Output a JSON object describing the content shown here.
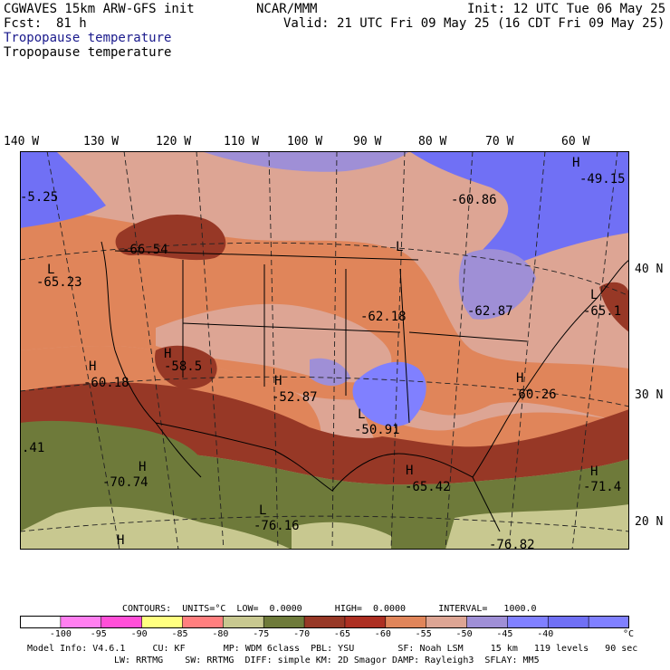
{
  "header": {
    "model": "CGWAVES 15km ARW-GFS init",
    "org": "NCAR/MMM",
    "init": "Init: 12 UTC Tue 06 May 25",
    "fcst_label": "Fcst:",
    "fcst_value": "81 h",
    "valid": "Valid: 21 UTC Fri 09 May 25 (16 CDT Fri 09 May 25)",
    "field1": "Tropopause temperature",
    "field2": "Tropopause temperature"
  },
  "longitudes": [
    "140 W",
    "130 W",
    "120 W",
    "110 W",
    "100 W",
    "90 W",
    "80 W",
    "70 W",
    "60 W"
  ],
  "latitudes": [
    "40 N",
    "30 N",
    "20 N"
  ],
  "map_labels": [
    {
      "sym": "",
      "val": "-5.25"
    },
    {
      "sym": "",
      "val": "-60.86"
    },
    {
      "sym": "H",
      "val": "-49.15"
    },
    {
      "sym": "",
      "val": "-66.54"
    },
    {
      "sym": "L",
      "val": "-65.23"
    },
    {
      "sym": "L",
      "val": ""
    },
    {
      "sym": "",
      "val": "-62.18"
    },
    {
      "sym": "",
      "val": "-62.87"
    },
    {
      "sym": "L",
      "val": "-65.1"
    },
    {
      "sym": "H",
      "val": "-60.18"
    },
    {
      "sym": "H",
      "val": "-58.5"
    },
    {
      "sym": "H",
      "val": "-52.87"
    },
    {
      "sym": "H",
      "val": "-60.26"
    },
    {
      "sym": "L",
      "val": "-50.91"
    },
    {
      "sym": "",
      "val": ".41"
    },
    {
      "sym": "H",
      "val": "-70.74"
    },
    {
      "sym": "H",
      "val": "-65.42"
    },
    {
      "sym": "H",
      "val": "-71.4"
    },
    {
      "sym": "L",
      "val": "-76.16"
    },
    {
      "sym": "H",
      "val": ""
    },
    {
      "sym": "",
      "val": "-76.82"
    }
  ],
  "contours": {
    "units_text": "CONTOURS:  UNITS=°C  LOW=  0.0000      HIGH=  0.0000      INTERVAL=   1000.0"
  },
  "colorbar": {
    "colors": [
      "#ffffff",
      "#ff7ff0",
      "#ff4fd8",
      "#ffff80",
      "#ff7f7f",
      "#c8c890",
      "#6e7a3a",
      "#973826",
      "#ad2f22",
      "#e0855a",
      "#dda594",
      "#9f8fd6",
      "#8080ff",
      "#7070f5",
      "#8080ff"
    ],
    "ticks": [
      "-100",
      "-95",
      "-90",
      "-85",
      "-80",
      "-75",
      "-70",
      "-65",
      "-60",
      "-55",
      "-50",
      "-45",
      "-40"
    ],
    "unit": "°C"
  },
  "footer": {
    "line1": "Model Info: V4.6.1     CU: KF       MP: WDM 6class  PBL: YSU        SF: Noah LSM     15 km   119 levels   90 sec",
    "line2": "LW: RRTMG    SW: RRTMG  DIFF: simple KM: 2D Smagor DAMP: Rayleigh3  SFLAY: MM5"
  }
}
